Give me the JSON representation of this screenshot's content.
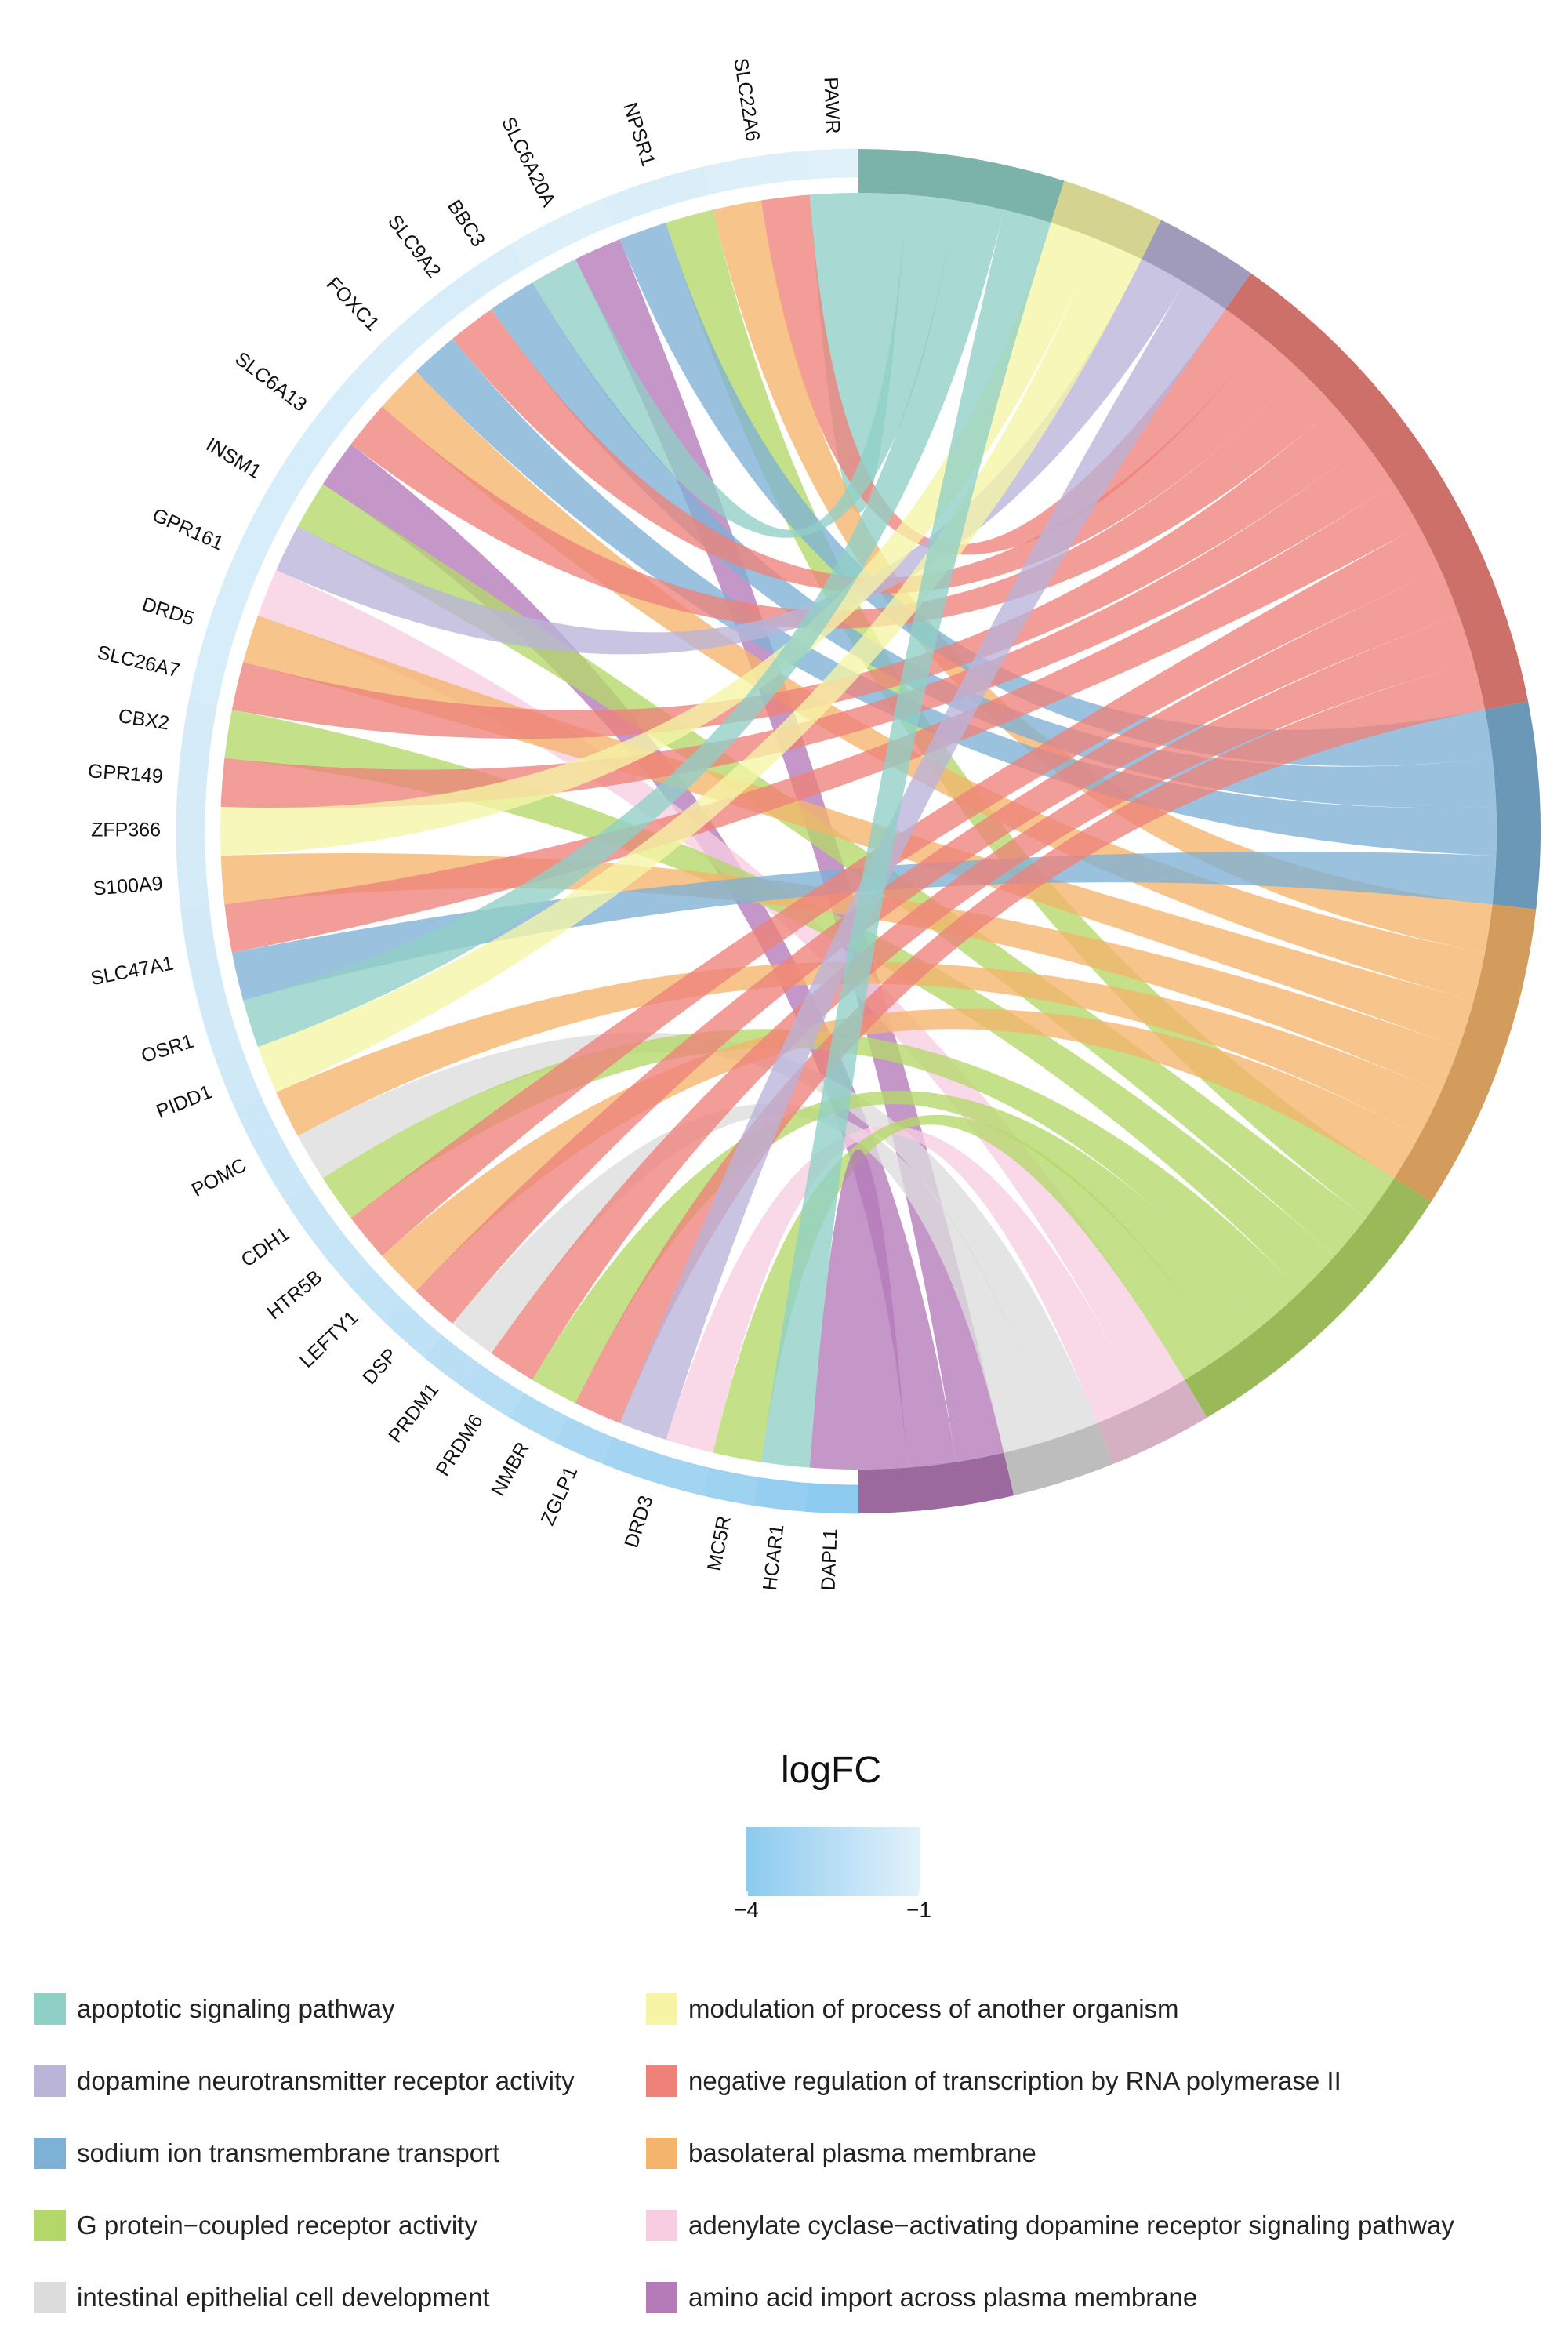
{
  "chart_data": {
    "type": "chord",
    "genes": [
      "PAWR",
      "SLC22A6",
      "NPSR1",
      "SLC6A20A",
      "BBC3",
      "SLC9A2",
      "FOXC1",
      "SLC6A13",
      "INSM1",
      "GPR161",
      "DRD5",
      "SLC26A7",
      "CBX2",
      "GPR149",
      "ZFP366",
      "S100A9",
      "SLC47A1",
      "OSR1",
      "PIDD1",
      "POMC",
      "CDH1",
      "HTR5B",
      "LEFTY1",
      "DSP",
      "PRDM1",
      "PRDM6",
      "NMBR",
      "ZGLP1",
      "DRD3",
      "MC5R",
      "HCAR1",
      "DAPL1"
    ],
    "gene_logFC": [
      -1.1,
      -1.2,
      -1.3,
      -1.2,
      -1.3,
      -1.4,
      -1.3,
      -1.4,
      -1.4,
      -1.4,
      -1.4,
      -1.4,
      -1.5,
      -1.5,
      -1.5,
      -1.5,
      -1.6,
      -1.6,
      -1.7,
      -1.8,
      -1.9,
      -2.0,
      -2.1,
      -2.2,
      -2.4,
      -2.6,
      -2.8,
      -3.0,
      -3.2,
      -3.4,
      -3.7,
      -4.0
    ],
    "terms": [
      {
        "name": "apoptotic signaling pathway",
        "color": "#8fd0c6"
      },
      {
        "name": "modulation of process of another organism",
        "color": "#f6f5a6"
      },
      {
        "name": "dopamine neurotransmitter receptor activity",
        "color": "#bab4d8"
      },
      {
        "name": "negative regulation of transcription by RNA polymerase II",
        "color": "#ee827a"
      },
      {
        "name": "sodium ion transmembrane transport",
        "color": "#7eb1d6"
      },
      {
        "name": "basolateral plasma membrane",
        "color": "#f5b46b"
      },
      {
        "name": "G protein−coupled receptor activity",
        "color": "#b3d869"
      },
      {
        "name": "adenylate cyclase−activating dopamine receptor signaling pathway",
        "color": "#f7cde1"
      },
      {
        "name": "intestinal epithelial cell development",
        "color": "#dcdcdc"
      },
      {
        "name": "amino acid import across plasma membrane",
        "color": "#b57ab8"
      }
    ],
    "links": [
      {
        "gene": "PAWR",
        "term": 0
      },
      {
        "gene": "SLC22A6",
        "term": 3
      },
      {
        "gene": "SLC22A6",
        "term": 5
      },
      {
        "gene": "NPSR1",
        "term": 6
      },
      {
        "gene": "NPSR1",
        "term": 4
      },
      {
        "gene": "SLC6A20A",
        "term": 9
      },
      {
        "gene": "SLC6A20A",
        "term": 0
      },
      {
        "gene": "BBC3",
        "term": 4
      },
      {
        "gene": "SLC9A2",
        "term": 3
      },
      {
        "gene": "FOXC1",
        "term": 4
      },
      {
        "gene": "FOXC1",
        "term": 5
      },
      {
        "gene": "SLC6A13",
        "term": 3
      },
      {
        "gene": "SLC6A13",
        "term": 9
      },
      {
        "gene": "INSM1",
        "term": 6
      },
      {
        "gene": "GPR161",
        "term": 2
      },
      {
        "gene": "GPR161",
        "term": 7
      },
      {
        "gene": "DRD5",
        "term": 5
      },
      {
        "gene": "SLC26A7",
        "term": 3
      },
      {
        "gene": "CBX2",
        "term": 6
      },
      {
        "gene": "GPR149",
        "term": 3
      },
      {
        "gene": "ZFP366",
        "term": 1
      },
      {
        "gene": "S100A9",
        "term": 5
      },
      {
        "gene": "SLC47A1",
        "term": 3
      },
      {
        "gene": "SLC47A1",
        "term": 4
      },
      {
        "gene": "OSR1",
        "term": 0
      },
      {
        "gene": "PIDD1",
        "term": 1
      },
      {
        "gene": "POMC",
        "term": 5
      },
      {
        "gene": "POMC",
        "term": 8
      },
      {
        "gene": "CDH1",
        "term": 6
      },
      {
        "gene": "HTR5B",
        "term": 3
      },
      {
        "gene": "LEFTY1",
        "term": 5
      },
      {
        "gene": "DSP",
        "term": 3
      },
      {
        "gene": "PRDM1",
        "term": 8
      },
      {
        "gene": "PRDM6",
        "term": 3
      },
      {
        "gene": "NMBR",
        "term": 6
      },
      {
        "gene": "ZGLP1",
        "term": 3
      },
      {
        "gene": "DRD3",
        "term": 2
      },
      {
        "gene": "DRD3",
        "term": 7
      },
      {
        "gene": "MC5R",
        "term": 6
      },
      {
        "gene": "HCAR1",
        "term": 0
      },
      {
        "gene": "DAPL1",
        "term": 9
      }
    ],
    "colorbar": {
      "title": "logFC",
      "min_label": "−4",
      "max_label": "−1",
      "min": -4,
      "max": -1,
      "low_color": "#8ccaef",
      "high_color": "#e3f2fa"
    },
    "legend_placement": "bottom"
  }
}
